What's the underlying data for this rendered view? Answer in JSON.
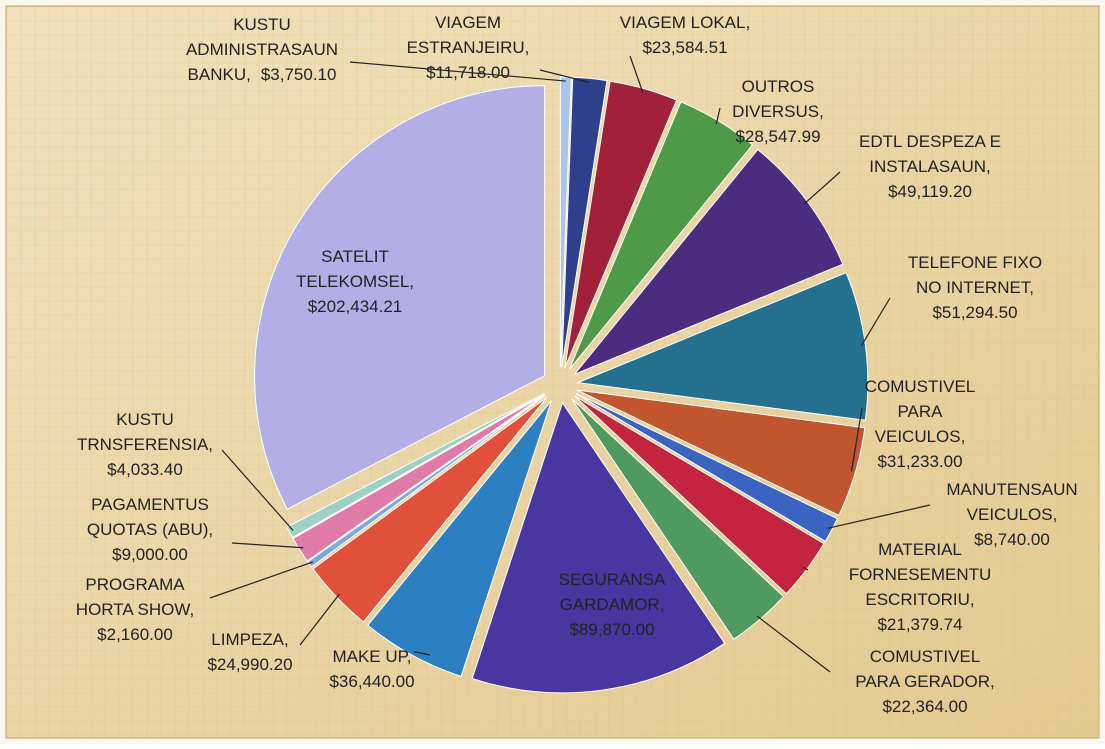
{
  "chart_data": {
    "type": "pie",
    "categories": [
      [
        "KUSTU",
        "ADMINISTRASAUN",
        "BANKU,"
      ],
      [
        "VIAGEM",
        "ESTRANJEIRU,"
      ],
      [
        "VIAGEM LOKAL,"
      ],
      [
        "OUTROS",
        "DIVERSUS,"
      ],
      [
        "EDTL DESPEZA E",
        "INSTALASAUN,"
      ],
      [
        "TELEFONE FIXO",
        "NO INTERNET,"
      ],
      [
        "COMUSTIVEL",
        "PARA",
        "VEICULOS,"
      ],
      [
        "MANUTENSAUN",
        "VEICULOS,"
      ],
      [
        "MATERIAL",
        "FORNESEMENTU",
        "ESCRITORIU,"
      ],
      [
        "COMUSTIVEL",
        "PARA GERADOR,"
      ],
      [
        "SEGURANSA",
        "GARDAMOR,"
      ],
      [
        "MAKE UP,"
      ],
      [
        "LIMPEZA,"
      ],
      [
        "PROGRAMA",
        "HORTA SHOW,"
      ],
      [
        "PAGAMENTUS",
        "QUOTAS (ABU),"
      ],
      [
        "KUSTU",
        "TRNSFERENSIA,"
      ],
      [
        "SATELIT",
        "TELEKOMSEL,"
      ]
    ],
    "values": [
      3750.1,
      11718.0,
      23584.51,
      28547.99,
      49119.2,
      51294.5,
      31233.0,
      8740.0,
      21379.74,
      22364.0,
      89870.0,
      36440.0,
      24990.2,
      2160.0,
      9000.0,
      4033.4,
      202434.21
    ],
    "value_labels": [
      "$3,750.10",
      "$11,718.00",
      "$23,584.51",
      "$28,547.99",
      "$49,119.20",
      "$51,294.50",
      "$31,233.00",
      "$8,740.00",
      "$21,379.74",
      "$22,364.00",
      "$89,870.00",
      "$36,440.00",
      "$24,990.20",
      "$2,160.00",
      "$9,000.00",
      "$4,033.40",
      "$202,434.21"
    ],
    "colors": [
      "#a9c6e8",
      "#2e3f8c",
      "#a3203a",
      "#4e9a48",
      "#4b2c7e",
      "#23718f",
      "#c0552e",
      "#3a63c2",
      "#c4243f",
      "#4f9a5e",
      "#4a36a0",
      "#2c7fc0",
      "#e1503a",
      "#7fa8dc",
      "#e07aa8",
      "#9fd0c8",
      "#b3aee6"
    ]
  }
}
